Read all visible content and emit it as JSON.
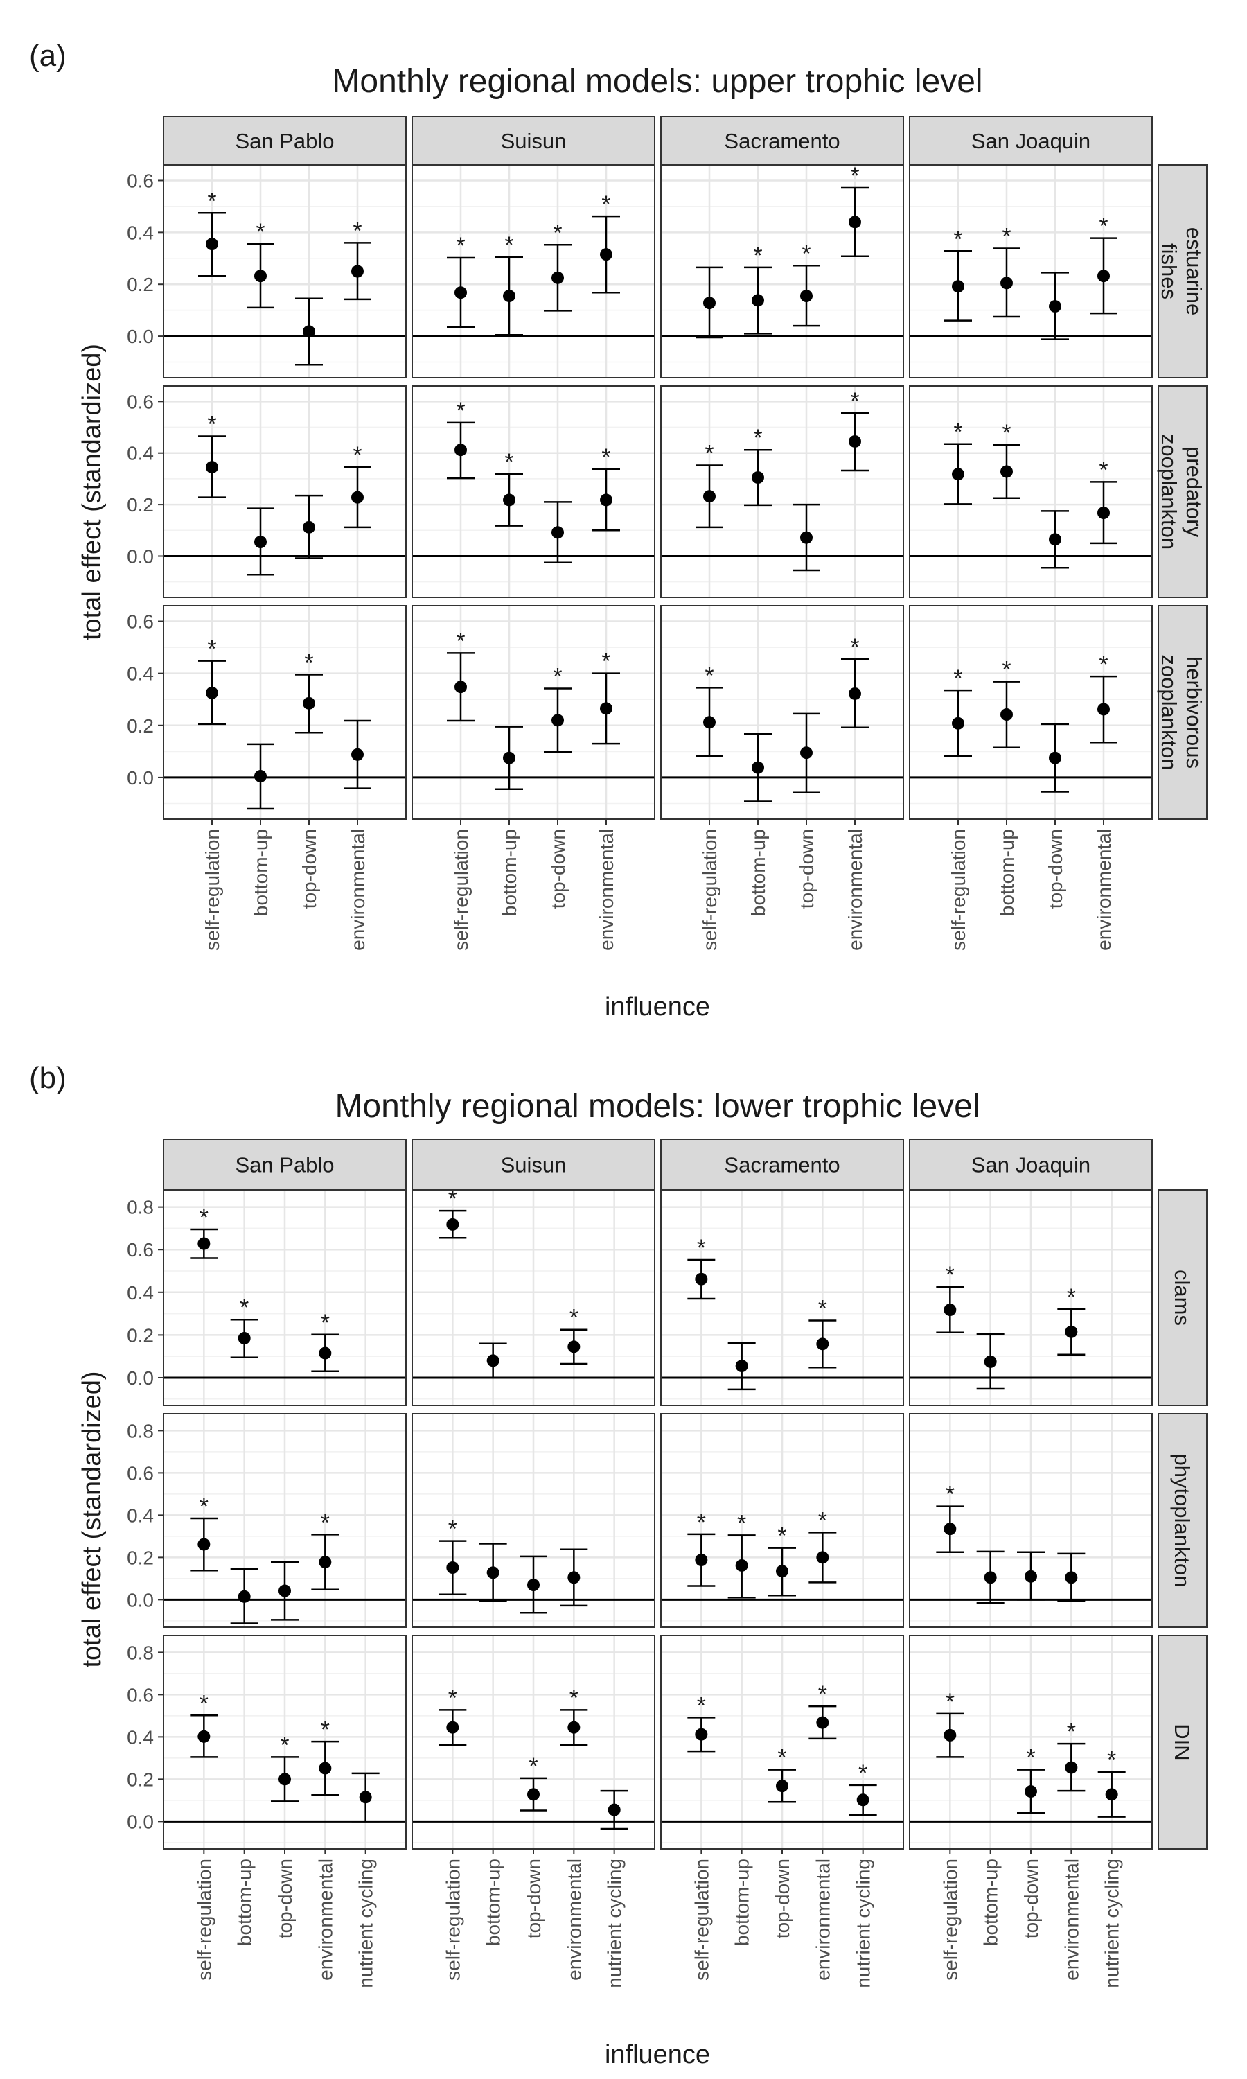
{
  "chart_data": [
    {
      "type": "scatter",
      "panel_label": "(a)",
      "title": "Monthly regional models: upper trophic level",
      "xlabel": "influence",
      "ylabel": "total effect (standardized)",
      "ylim": [
        -0.16,
        0.66
      ],
      "yticks": [
        "0.0",
        "0.2",
        "0.4",
        "0.6"
      ],
      "grid": true,
      "columns": [
        "San Pablo",
        "Suisun",
        "Sacramento",
        "San Joaquin"
      ],
      "rows": [
        [
          "estuarine",
          "fishes"
        ],
        [
          "predatory",
          "zooplankton"
        ],
        [
          "herbivorous",
          "zooplankton"
        ]
      ],
      "categories": [
        "self-regulation",
        "bottom-up",
        "top-down",
        "environmental"
      ],
      "series": [
        {
          "column": "San Pablo",
          "row": "estuarine fishes",
          "values": [
            0.355,
            0.232,
            0.018,
            0.25
          ],
          "lower": [
            0.232,
            0.11,
            -0.11,
            0.142
          ],
          "upper": [
            0.475,
            0.355,
            0.145,
            0.36
          ],
          "significant": [
            true,
            true,
            false,
            true
          ]
        },
        {
          "column": "Suisun",
          "row": "estuarine fishes",
          "values": [
            0.168,
            0.155,
            0.225,
            0.315
          ],
          "lower": [
            0.035,
            0.005,
            0.098,
            0.168
          ],
          "upper": [
            0.302,
            0.305,
            0.352,
            0.462
          ],
          "significant": [
            true,
            true,
            true,
            true
          ]
        },
        {
          "column": "Sacramento",
          "row": "estuarine fishes",
          "values": [
            0.128,
            0.138,
            0.155,
            0.44
          ],
          "lower": [
            -0.005,
            0.01,
            0.04,
            0.308
          ],
          "upper": [
            0.265,
            0.265,
            0.272,
            0.572
          ],
          "significant": [
            false,
            true,
            true,
            true
          ]
        },
        {
          "column": "San Joaquin",
          "row": "estuarine fishes",
          "values": [
            0.192,
            0.205,
            0.115,
            0.232
          ],
          "lower": [
            0.06,
            0.075,
            -0.012,
            0.088
          ],
          "upper": [
            0.328,
            0.338,
            0.245,
            0.378
          ],
          "significant": [
            true,
            true,
            false,
            true
          ]
        },
        {
          "column": "San Pablo",
          "row": "predatory zooplankton",
          "values": [
            0.345,
            0.055,
            0.112,
            0.228
          ],
          "lower": [
            0.228,
            -0.072,
            -0.008,
            0.112
          ],
          "upper": [
            0.465,
            0.185,
            0.235,
            0.345
          ],
          "significant": [
            true,
            false,
            false,
            true
          ]
        },
        {
          "column": "Suisun",
          "row": "predatory zooplankton",
          "values": [
            0.412,
            0.218,
            0.092,
            0.218
          ],
          "lower": [
            0.302,
            0.118,
            -0.025,
            0.1
          ],
          "upper": [
            0.518,
            0.318,
            0.21,
            0.338
          ],
          "significant": [
            true,
            true,
            false,
            true
          ]
        },
        {
          "column": "Sacramento",
          "row": "predatory zooplankton",
          "values": [
            0.232,
            0.305,
            0.072,
            0.445
          ],
          "lower": [
            0.112,
            0.198,
            -0.055,
            0.332
          ],
          "upper": [
            0.352,
            0.412,
            0.2,
            0.555
          ],
          "significant": [
            true,
            true,
            false,
            true
          ]
        },
        {
          "column": "San Joaquin",
          "row": "predatory zooplankton",
          "values": [
            0.318,
            0.328,
            0.065,
            0.168
          ],
          "lower": [
            0.202,
            0.225,
            -0.045,
            0.05
          ],
          "upper": [
            0.435,
            0.432,
            0.175,
            0.288
          ],
          "significant": [
            true,
            true,
            false,
            true
          ]
        },
        {
          "column": "San Pablo",
          "row": "herbivorous zooplankton",
          "values": [
            0.325,
            0.005,
            0.285,
            0.088
          ],
          "lower": [
            0.205,
            -0.12,
            0.172,
            -0.042
          ],
          "upper": [
            0.448,
            0.128,
            0.395,
            0.218
          ],
          "significant": [
            true,
            false,
            true,
            false
          ]
        },
        {
          "column": "Suisun",
          "row": "herbivorous zooplankton",
          "values": [
            0.348,
            0.075,
            0.22,
            0.265
          ],
          "lower": [
            0.218,
            -0.045,
            0.098,
            0.13
          ],
          "upper": [
            0.478,
            0.195,
            0.342,
            0.4
          ],
          "significant": [
            true,
            false,
            true,
            true
          ]
        },
        {
          "column": "Sacramento",
          "row": "herbivorous zooplankton",
          "values": [
            0.212,
            0.038,
            0.095,
            0.322
          ],
          "lower": [
            0.082,
            -0.092,
            -0.058,
            0.192
          ],
          "upper": [
            0.345,
            0.168,
            0.245,
            0.455
          ],
          "significant": [
            true,
            false,
            false,
            true
          ]
        },
        {
          "column": "San Joaquin",
          "row": "herbivorous zooplankton",
          "values": [
            0.208,
            0.242,
            0.075,
            0.262
          ],
          "lower": [
            0.082,
            0.115,
            -0.055,
            0.135
          ],
          "upper": [
            0.335,
            0.368,
            0.205,
            0.388
          ],
          "significant": [
            true,
            true,
            false,
            true
          ]
        }
      ]
    },
    {
      "type": "scatter",
      "panel_label": "(b)",
      "title": "Monthly regional models: lower trophic level",
      "xlabel": "influence",
      "ylabel": "total effect (standardized)",
      "ylim": [
        -0.13,
        0.88
      ],
      "yticks": [
        "0.0",
        "0.2",
        "0.4",
        "0.6",
        "0.8"
      ],
      "grid": true,
      "columns": [
        "San Pablo",
        "Suisun",
        "Sacramento",
        "San Joaquin"
      ],
      "rows": [
        [
          "clams"
        ],
        [
          "phytoplankton"
        ],
        [
          "DIN"
        ]
      ],
      "categories": [
        "self-regulation",
        "bottom-up",
        "top-down",
        "environmental",
        "nutrient cycling"
      ],
      "series": [
        {
          "column": "San Pablo",
          "row": "clams",
          "values": [
            0.628,
            0.185,
            null,
            0.115,
            null
          ],
          "lower": [
            0.56,
            0.095,
            null,
            0.03,
            null
          ],
          "upper": [
            0.695,
            0.272,
            null,
            0.202,
            null
          ],
          "significant": [
            true,
            true,
            false,
            true,
            false
          ]
        },
        {
          "column": "Suisun",
          "row": "clams",
          "values": [
            0.718,
            0.08,
            null,
            0.145,
            null
          ],
          "lower": [
            0.655,
            0.0,
            null,
            0.065,
            null
          ],
          "upper": [
            0.782,
            0.16,
            null,
            0.225,
            null
          ],
          "significant": [
            true,
            false,
            false,
            true,
            false
          ]
        },
        {
          "column": "Sacramento",
          "row": "clams",
          "values": [
            0.462,
            0.055,
            null,
            0.158,
            null
          ],
          "lower": [
            0.37,
            -0.055,
            null,
            0.048,
            null
          ],
          "upper": [
            0.552,
            0.162,
            null,
            0.268,
            null
          ],
          "significant": [
            true,
            false,
            false,
            true,
            false
          ]
        },
        {
          "column": "San Joaquin",
          "row": "clams",
          "values": [
            0.318,
            0.075,
            null,
            0.215,
            null
          ],
          "lower": [
            0.212,
            -0.052,
            null,
            0.108,
            null
          ],
          "upper": [
            0.425,
            0.205,
            null,
            0.322,
            null
          ],
          "significant": [
            true,
            false,
            false,
            true,
            false
          ]
        },
        {
          "column": "San Pablo",
          "row": "phytoplankton",
          "values": [
            0.262,
            0.015,
            0.042,
            0.178,
            null
          ],
          "lower": [
            0.138,
            -0.112,
            -0.095,
            0.048,
            null
          ],
          "upper": [
            0.385,
            0.145,
            0.178,
            0.308,
            null
          ],
          "significant": [
            true,
            false,
            false,
            true,
            false
          ]
        },
        {
          "column": "Suisun",
          "row": "phytoplankton",
          "values": [
            0.152,
            0.128,
            0.07,
            0.105,
            null
          ],
          "lower": [
            0.025,
            -0.005,
            -0.062,
            -0.028,
            null
          ],
          "upper": [
            0.278,
            0.265,
            0.205,
            0.238,
            null
          ],
          "significant": [
            true,
            false,
            false,
            false,
            false
          ]
        },
        {
          "column": "Sacramento",
          "row": "phytoplankton",
          "values": [
            0.188,
            0.162,
            0.135,
            0.2,
            null
          ],
          "lower": [
            0.065,
            0.01,
            0.02,
            0.082,
            null
          ],
          "upper": [
            0.31,
            0.305,
            0.245,
            0.318,
            null
          ],
          "significant": [
            true,
            true,
            true,
            true,
            false
          ]
        },
        {
          "column": "San Joaquin",
          "row": "phytoplankton",
          "values": [
            0.335,
            0.105,
            0.11,
            0.105,
            null
          ],
          "lower": [
            0.225,
            -0.015,
            0.0,
            -0.005,
            null
          ],
          "upper": [
            0.442,
            0.228,
            0.225,
            0.218,
            null
          ],
          "significant": [
            true,
            false,
            false,
            false,
            false
          ]
        },
        {
          "column": "San Pablo",
          "row": "DIN",
          "values": [
            0.402,
            null,
            0.2,
            0.252,
            0.115
          ],
          "lower": [
            0.305,
            null,
            0.095,
            0.125,
            0.0
          ],
          "upper": [
            0.502,
            null,
            0.305,
            0.378,
            0.228
          ],
          "significant": [
            true,
            false,
            true,
            true,
            false
          ]
        },
        {
          "column": "Suisun",
          "row": "DIN",
          "values": [
            0.445,
            null,
            0.128,
            0.445,
            0.055
          ],
          "lower": [
            0.362,
            null,
            0.052,
            0.362,
            -0.035
          ],
          "upper": [
            0.528,
            null,
            0.205,
            0.528,
            0.145
          ],
          "significant": [
            true,
            false,
            true,
            true,
            false
          ]
        },
        {
          "column": "Sacramento",
          "row": "DIN",
          "values": [
            0.412,
            null,
            0.168,
            0.468,
            0.102
          ],
          "lower": [
            0.332,
            null,
            0.092,
            0.392,
            0.03
          ],
          "upper": [
            0.492,
            null,
            0.245,
            0.545,
            0.172
          ],
          "significant": [
            true,
            false,
            true,
            true,
            true
          ]
        },
        {
          "column": "San Joaquin",
          "row": "DIN",
          "values": [
            0.408,
            null,
            0.142,
            0.255,
            0.128
          ],
          "lower": [
            0.305,
            null,
            0.04,
            0.145,
            0.022
          ],
          "upper": [
            0.51,
            null,
            0.245,
            0.368,
            0.235
          ],
          "significant": [
            true,
            false,
            true,
            true,
            true
          ]
        }
      ]
    }
  ]
}
